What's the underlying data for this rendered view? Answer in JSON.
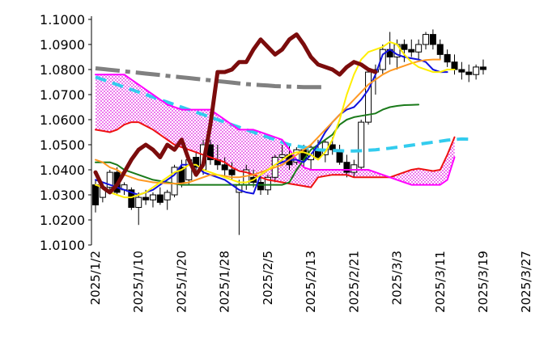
{
  "chart_data": {
    "type": "candlestick",
    "y_axis": {
      "min": 1.01,
      "max": 1.1,
      "step": 0.01,
      "tick_labels": [
        "1.0100",
        "1.0200",
        "1.0300",
        "1.0400",
        "1.0500",
        "1.0600",
        "1.0700",
        "1.0800",
        "1.0900",
        "1.1000"
      ]
    },
    "x_axis": {
      "tick_labels": [
        "2025/1/2",
        "2025/1/10",
        "2025/1/20",
        "2025/1/28",
        "2025/2/5",
        "2025/2/13",
        "2025/2/21",
        "2025/3/3",
        "2025/3/11",
        "2025/3/19",
        "2025/3/27"
      ],
      "tick_index": [
        0,
        6,
        12,
        18,
        24,
        30,
        36,
        42,
        48,
        54,
        60
      ]
    },
    "grid": false,
    "legend": "none",
    "candles": [
      [
        1.034,
        1.036,
        1.023,
        1.026
      ],
      [
        1.029,
        1.034,
        1.027,
        1.033
      ],
      [
        1.033,
        1.04,
        1.032,
        1.039
      ],
      [
        1.039,
        1.041,
        1.03,
        1.031
      ],
      [
        1.032,
        1.035,
        1.03,
        1.034
      ],
      [
        1.032,
        1.033,
        1.024,
        1.025
      ],
      [
        1.025,
        1.031,
        1.018,
        1.029
      ],
      [
        1.029,
        1.032,
        1.026,
        1.028
      ],
      [
        1.028,
        1.031,
        1.025,
        1.03
      ],
      [
        1.03,
        1.033,
        1.026,
        1.027
      ],
      [
        1.028,
        1.032,
        1.024,
        1.031
      ],
      [
        1.03,
        1.042,
        1.029,
        1.041
      ],
      [
        1.041,
        1.044,
        1.033,
        1.035
      ],
      [
        1.036,
        1.045,
        1.034,
        1.044
      ],
      [
        1.045,
        1.047,
        1.038,
        1.041
      ],
      [
        1.04,
        1.052,
        1.038,
        1.05
      ],
      [
        1.05,
        1.052,
        1.042,
        1.044
      ],
      [
        1.044,
        1.05,
        1.04,
        1.042
      ],
      [
        1.042,
        1.045,
        1.037,
        1.04
      ],
      [
        1.04,
        1.043,
        1.036,
        1.038
      ],
      [
        1.031,
        1.036,
        1.014,
        1.034
      ],
      [
        1.034,
        1.042,
        1.032,
        1.04
      ],
      [
        1.037,
        1.04,
        1.033,
        1.035
      ],
      [
        1.035,
        1.038,
        1.03,
        1.032
      ],
      [
        1.032,
        1.038,
        1.03,
        1.037
      ],
      [
        1.037,
        1.046,
        1.035,
        1.045
      ],
      [
        1.045,
        1.05,
        1.043,
        1.046
      ],
      [
        1.046,
        1.05,
        1.04,
        1.042
      ],
      [
        1.043,
        1.049,
        1.042,
        1.048
      ],
      [
        1.048,
        1.05,
        1.041,
        1.044
      ],
      [
        1.044,
        1.05,
        1.04,
        1.049
      ],
      [
        1.048,
        1.052,
        1.044,
        1.045
      ],
      [
        1.046,
        1.052,
        1.043,
        1.051
      ],
      [
        1.05,
        1.053,
        1.046,
        1.048
      ],
      [
        1.048,
        1.05,
        1.042,
        1.043
      ],
      [
        1.043,
        1.046,
        1.037,
        1.039
      ],
      [
        1.039,
        1.044,
        1.037,
        1.042
      ],
      [
        1.041,
        1.06,
        1.04,
        1.059
      ],
      [
        1.059,
        1.08,
        1.058,
        1.079
      ],
      [
        1.079,
        1.082,
        1.07,
        1.08
      ],
      [
        1.08,
        1.09,
        1.078,
        1.088
      ],
      [
        1.088,
        1.095,
        1.082,
        1.085
      ],
      [
        1.085,
        1.092,
        1.08,
        1.09
      ],
      [
        1.09,
        1.092,
        1.083,
        1.088
      ],
      [
        1.088,
        1.092,
        1.085,
        1.087
      ],
      [
        1.087,
        1.092,
        1.084,
        1.09
      ],
      [
        1.09,
        1.095,
        1.088,
        1.094
      ],
      [
        1.094,
        1.096,
        1.088,
        1.09
      ],
      [
        1.09,
        1.092,
        1.084,
        1.086
      ],
      [
        1.086,
        1.088,
        1.081,
        1.083
      ],
      [
        1.083,
        1.086,
        1.078,
        1.08
      ],
      [
        1.08,
        1.083,
        1.076,
        1.079
      ],
      [
        1.079,
        1.082,
        1.075,
        1.078
      ],
      [
        1.078,
        1.082,
        1.076,
        1.081
      ],
      [
        1.081,
        1.084,
        1.078,
        1.08
      ]
    ],
    "series": [
      {
        "color": "#7b0c0c",
        "width": 5,
        "start": 0,
        "values": [
          1.039,
          1.033,
          1.031,
          1.034,
          1.039,
          1.044,
          1.048,
          1.05,
          1.048,
          1.045,
          1.05,
          1.048,
          1.052,
          1.044,
          1.038,
          1.042,
          1.058,
          1.079,
          1.079,
          1.08,
          1.083,
          1.083,
          1.088,
          1.092,
          1.089,
          1.086,
          1.088,
          1.092,
          1.094,
          1.09,
          1.085,
          1.082,
          1.081,
          1.08,
          1.078,
          1.081,
          1.083,
          1.082,
          1.08,
          1.079
        ]
      },
      {
        "color": "#808080",
        "width": 5,
        "dash": "30 7 6 7",
        "start": 0,
        "values": [
          1.0805,
          1.0802,
          1.0799,
          1.0796,
          1.0793,
          1.079,
          1.0787,
          1.0784,
          1.0781,
          1.0778,
          1.0775,
          1.0772,
          1.0769,
          1.0766,
          1.0763,
          1.076,
          1.0757,
          1.0754,
          1.0751,
          1.0748,
          1.0745,
          1.0742,
          1.074,
          1.0738,
          1.0736,
          1.0734,
          1.0733,
          1.0732,
          1.0731,
          1.073,
          1.073,
          1.073,
          1.073
        ]
      },
      {
        "color": "#33ccee",
        "width": 4,
        "dash": "14 8",
        "start": 0,
        "values": [
          1.077,
          1.076,
          1.075,
          1.074,
          1.073,
          1.072,
          1.071,
          1.07,
          1.069,
          1.068,
          1.067,
          1.066,
          1.065,
          1.064,
          1.063,
          1.062,
          1.061,
          1.06,
          1.059,
          1.058,
          1.057,
          1.056,
          1.055,
          1.054,
          1.053,
          1.052,
          1.051,
          1.05,
          1.0495,
          1.049,
          1.0485,
          1.048,
          1.0478,
          1.0477,
          1.0476,
          1.0475,
          1.0475,
          1.0476,
          1.0478,
          1.048,
          1.0483,
          1.0486,
          1.049,
          1.0494,
          1.0498,
          1.0502,
          1.0506,
          1.051,
          1.0514,
          1.0518,
          1.0521,
          1.0523,
          1.0522
        ]
      },
      {
        "color": "#ee1111",
        "width": 2,
        "start": 0,
        "values": [
          1.056,
          1.0555,
          1.055,
          1.056,
          1.058,
          1.059,
          1.059,
          1.0575,
          1.056,
          1.054,
          1.052,
          1.05,
          1.049,
          1.048,
          1.047,
          1.046,
          1.045,
          1.044,
          1.043,
          1.041,
          1.0395,
          1.039,
          1.038,
          1.037,
          1.036,
          1.0355,
          1.035,
          1.0345,
          1.034,
          1.0335,
          1.033,
          1.037,
          1.0375,
          1.038,
          1.038,
          1.038,
          1.037,
          1.037,
          1.037,
          1.037,
          1.037,
          1.037,
          1.038,
          1.039,
          1.04,
          1.0405,
          1.04,
          1.0395,
          1.04,
          1.046,
          1.053
        ]
      },
      {
        "color": "#ff00ff",
        "width": 2,
        "start": 0,
        "values": [
          1.078,
          1.078,
          1.078,
          1.078,
          1.078,
          1.076,
          1.074,
          1.072,
          1.07,
          1.068,
          1.066,
          1.065,
          1.064,
          1.064,
          1.064,
          1.064,
          1.064,
          1.062,
          1.06,
          1.058,
          1.056,
          1.056,
          1.056,
          1.055,
          1.054,
          1.053,
          1.052,
          1.048,
          1.044,
          1.041,
          1.04,
          1.04,
          1.04,
          1.04,
          1.04,
          1.04,
          1.04,
          1.04,
          1.04,
          1.039,
          1.038,
          1.037,
          1.036,
          1.035,
          1.034,
          1.034,
          1.034,
          1.034,
          1.034,
          1.036,
          1.045
        ]
      },
      {
        "color": "#1a7a1a",
        "width": 2,
        "start": 0,
        "values": [
          1.043,
          1.043,
          1.043,
          1.042,
          1.04,
          1.039,
          1.038,
          1.037,
          1.036,
          1.0355,
          1.035,
          1.0345,
          1.034,
          1.034,
          1.034,
          1.034,
          1.034,
          1.034,
          1.034,
          1.034,
          1.034,
          1.034,
          1.034,
          1.034,
          1.034,
          1.034,
          1.034,
          1.035,
          1.04,
          1.044,
          1.048,
          1.05,
          1.052,
          1.054,
          1.058,
          1.06,
          1.061,
          1.0615,
          1.062,
          1.0625,
          1.064,
          1.065,
          1.0655,
          1.0658,
          1.0659,
          1.066
        ]
      },
      {
        "color": "#1111dd",
        "width": 2,
        "start": 0,
        "values": [
          1.036,
          1.035,
          1.034,
          1.033,
          1.032,
          1.031,
          1.03,
          1.031,
          1.032,
          1.034,
          1.036,
          1.038,
          1.042,
          1.042,
          1.042,
          1.039,
          1.038,
          1.037,
          1.036,
          1.034,
          1.032,
          1.031,
          1.0305,
          1.038,
          1.04,
          1.042,
          1.043,
          1.044,
          1.044,
          1.043,
          1.046,
          1.05,
          1.055,
          1.059,
          1.062,
          1.064,
          1.065,
          1.068,
          1.072,
          1.078,
          1.086,
          1.088,
          1.086,
          1.085,
          1.0845,
          1.084,
          1.083,
          1.08,
          1.079,
          1.079
        ]
      },
      {
        "color": "#ffee00",
        "width": 2,
        "start": 0,
        "values": [
          1.034,
          1.033,
          1.031,
          1.03,
          1.029,
          1.029,
          1.03,
          1.031,
          1.033,
          1.035,
          1.037,
          1.039,
          1.04,
          1.042,
          1.042,
          1.04,
          1.039,
          1.038,
          1.037,
          1.036,
          1.035,
          1.035,
          1.036,
          1.038,
          1.04,
          1.042,
          1.044,
          1.046,
          1.047,
          1.047,
          1.046,
          1.044,
          1.047,
          1.052,
          1.06,
          1.07,
          1.078,
          1.084,
          1.087,
          1.088,
          1.089,
          1.091,
          1.09,
          1.086,
          1.083,
          1.081,
          1.08,
          1.079,
          1.079,
          1.08,
          1.08
        ]
      },
      {
        "color": "#ff9922",
        "width": 2,
        "start": 0,
        "values": [
          1.044,
          1.043,
          1.041,
          1.04,
          1.038,
          1.037,
          1.036,
          1.0355,
          1.035,
          1.0348,
          1.0346,
          1.0345,
          1.0346,
          1.035,
          1.036,
          1.037,
          1.038,
          1.038,
          1.0375,
          1.037,
          1.037,
          1.0375,
          1.038,
          1.039,
          1.04,
          1.041,
          1.042,
          1.044,
          1.046,
          1.048,
          1.05,
          1.053,
          1.056,
          1.059,
          1.062,
          1.065,
          1.068,
          1.071,
          1.074,
          1.076,
          1.078,
          1.0795,
          1.0805,
          1.0815,
          1.0825,
          1.0833,
          1.0838,
          1.084,
          1.084
        ]
      }
    ]
  }
}
